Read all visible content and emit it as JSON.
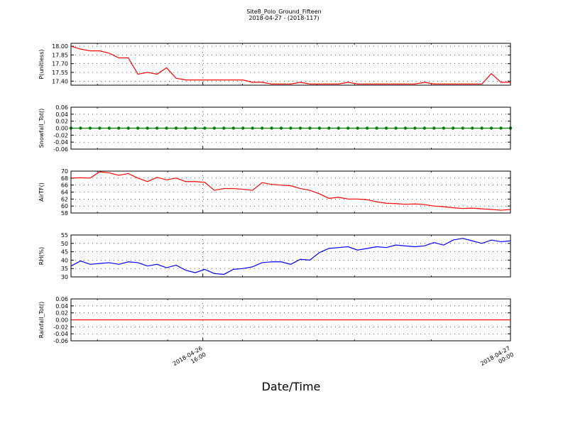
{
  "figure": {
    "title": "Site8_Polo_Ground_Fifteen",
    "subtitle": "2018-04-27 - (2018-117)",
    "xlabel": "Date/Time",
    "xticks": [
      {
        "line1": "2018-04-26",
        "line2": "16:00",
        "x": 0.3
      },
      {
        "line1": "2018-04-27",
        "line2": "00:00",
        "x": 1.0
      }
    ]
  },
  "chart_data": [
    {
      "type": "line",
      "ylabel": "P(unitless)",
      "color": "#ff0000",
      "marker": false,
      "ylim": [
        17.33,
        18.05
      ],
      "yticks": [
        "18.00",
        "17.85",
        "17.70",
        "17.55",
        "17.40"
      ],
      "ytick_values": [
        18.0,
        17.85,
        17.7,
        17.55,
        17.4
      ],
      "values": [
        18.0,
        17.95,
        17.92,
        17.92,
        17.88,
        17.8,
        17.8,
        17.52,
        17.55,
        17.52,
        17.63,
        17.45,
        17.42,
        17.42,
        17.42,
        17.42,
        17.42,
        17.42,
        17.42,
        17.38,
        17.38,
        17.35,
        17.35,
        17.35,
        17.38,
        17.35,
        17.35,
        17.35,
        17.35,
        17.38,
        17.35,
        17.35,
        17.35,
        17.35,
        17.35,
        17.35,
        17.35,
        17.38,
        17.35,
        17.35,
        17.35,
        17.35,
        17.35,
        17.35,
        17.53,
        17.38,
        17.38
      ]
    },
    {
      "type": "line",
      "ylabel": "Snowfall_Tot()",
      "color": "#008000",
      "marker": true,
      "ylim": [
        -0.06,
        0.06
      ],
      "yticks": [
        "0.06",
        "0.04",
        "0.02",
        "0.00",
        "-0.02",
        "-0.04",
        "-0.06"
      ],
      "ytick_values": [
        0.06,
        0.04,
        0.02,
        0.0,
        -0.02,
        -0.04,
        -0.06
      ],
      "values": [
        0,
        0,
        0,
        0,
        0,
        0,
        0,
        0,
        0,
        0,
        0,
        0,
        0,
        0,
        0,
        0,
        0,
        0,
        0,
        0,
        0,
        0,
        0,
        0,
        0,
        0,
        0,
        0,
        0,
        0,
        0,
        0,
        0,
        0,
        0,
        0,
        0,
        0,
        0,
        0,
        0,
        0,
        0,
        0,
        0,
        0,
        0
      ]
    },
    {
      "type": "line",
      "ylabel": "AirTF()",
      "color": "#ff0000",
      "marker": false,
      "ylim": [
        58,
        70
      ],
      "yticks": [
        "70",
        "68",
        "66",
        "64",
        "62",
        "60",
        "58"
      ],
      "ytick_values": [
        70,
        68,
        66,
        64,
        62,
        60,
        58
      ],
      "values": [
        68.0,
        68.1,
        68.0,
        69.8,
        69.5,
        68.8,
        69.3,
        68.0,
        67.0,
        68.2,
        67.5,
        68.0,
        67.0,
        67.0,
        66.8,
        64.5,
        65.0,
        65.0,
        64.8,
        64.5,
        66.7,
        66.2,
        66.0,
        65.8,
        65.0,
        64.5,
        63.5,
        62.2,
        62.5,
        62.0,
        62.0,
        61.8,
        61.2,
        60.8,
        60.7,
        60.5,
        60.6,
        60.4,
        60.0,
        59.8,
        59.5,
        59.3,
        59.4,
        59.2,
        59.0,
        58.8,
        59.0
      ]
    },
    {
      "type": "line",
      "ylabel": "RH(%)",
      "color": "#0000ff",
      "marker": false,
      "ylim": [
        30,
        55
      ],
      "yticks": [
        "55",
        "50",
        "45",
        "40",
        "35",
        "30"
      ],
      "ytick_values": [
        55,
        50,
        45,
        40,
        35,
        30
      ],
      "values": [
        36.5,
        39.5,
        37.5,
        38.0,
        38.5,
        37.5,
        39.0,
        38.5,
        36.5,
        37.5,
        35.5,
        37.0,
        34.0,
        32.5,
        34.5,
        32.0,
        31.5,
        34.5,
        35.0,
        36.0,
        38.5,
        39.0,
        39.0,
        37.5,
        40.5,
        40.0,
        44.5,
        47.0,
        47.5,
        48.0,
        46.0,
        47.0,
        48.0,
        47.5,
        49.0,
        48.5,
        48.0,
        48.5,
        50.5,
        49.0,
        52.0,
        53.0,
        51.5,
        50.0,
        52.0,
        51.0,
        51.5
      ]
    },
    {
      "type": "line",
      "ylabel": "Rainfall_Tot()",
      "color": "#ff0000",
      "marker": false,
      "ylim": [
        -0.06,
        0.06
      ],
      "yticks": [
        "0.06",
        "0.04",
        "0.02",
        "0.00",
        "-0.02",
        "-0.04",
        "-0.06"
      ],
      "ytick_values": [
        0.06,
        0.04,
        0.02,
        0.0,
        -0.02,
        -0.04,
        -0.06
      ],
      "values": [
        0,
        0,
        0,
        0,
        0,
        0,
        0,
        0,
        0,
        0,
        0,
        0,
        0,
        0,
        0,
        0,
        0,
        0,
        0,
        0,
        0,
        0,
        0,
        0,
        0,
        0,
        0,
        0,
        0,
        0,
        0,
        0,
        0,
        0,
        0,
        0,
        0,
        0,
        0,
        0,
        0,
        0,
        0,
        0,
        0,
        0,
        0
      ]
    }
  ]
}
